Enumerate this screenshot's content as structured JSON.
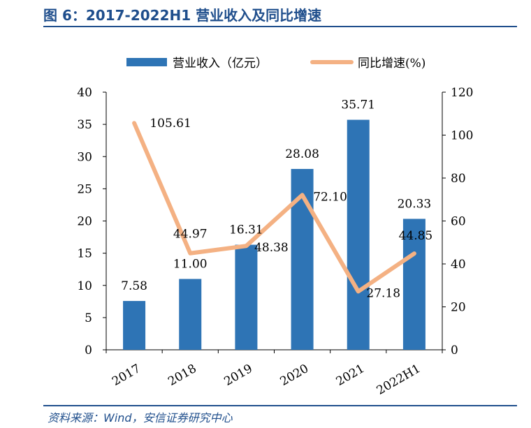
{
  "title": "图 6：2017-2022H1 营业收入及同比增速",
  "source": "资料来源：Wind，安信证券研究中心",
  "colors": {
    "bar": "#2e74b5",
    "line": "#f4b183",
    "accent": "#1f4e8c"
  },
  "chart_data": {
    "type": "bar",
    "categories": [
      "2017",
      "2018",
      "2019",
      "2020",
      "2021",
      "2022H1"
    ],
    "series": [
      {
        "name": "营业收入（亿元）",
        "type": "bar",
        "axis": "left",
        "values": [
          7.58,
          11.0,
          16.31,
          28.08,
          35.71,
          20.33
        ],
        "labels": [
          "7.58",
          "11.00",
          "16.31",
          "28.08",
          "35.71",
          "20.33"
        ]
      },
      {
        "name": "同比增速(%)",
        "type": "line",
        "axis": "right",
        "values": [
          105.61,
          44.97,
          48.38,
          72.1,
          27.18,
          44.85
        ],
        "labels": [
          "105.61",
          "44.97",
          "48.38",
          "72.10",
          "27.18",
          "44.85"
        ]
      }
    ],
    "y_left": {
      "lim": [
        0,
        40
      ],
      "ticks": [
        "0",
        "5",
        "10",
        "15",
        "20",
        "25",
        "30",
        "35",
        "40"
      ]
    },
    "y_right": {
      "lim": [
        0,
        120
      ],
      "ticks": [
        "0",
        "20",
        "40",
        "60",
        "80",
        "100",
        "120"
      ]
    },
    "grid": false,
    "legend": "top"
  }
}
